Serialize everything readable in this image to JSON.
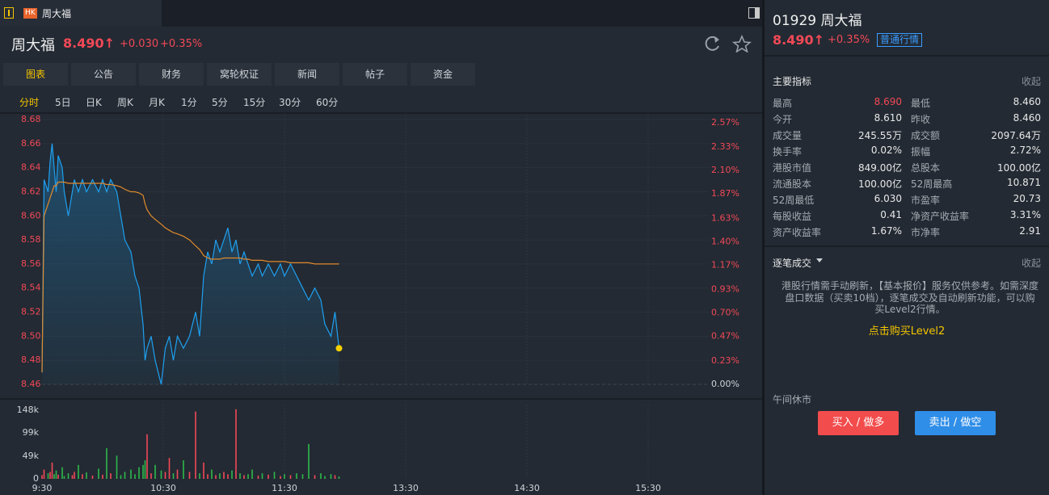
{
  "tab": {
    "badge": "HK",
    "title": "周大福"
  },
  "header": {
    "name": "周大福",
    "price": "8.490↑",
    "change": "+0.030",
    "change_pct": "+0.35%"
  },
  "tabs": [
    "图表",
    "公告",
    "财务",
    "窝轮权证",
    "新闻",
    "帖子",
    "资金"
  ],
  "periods": [
    "分时",
    "5日",
    "日K",
    "周K",
    "月K",
    "1分",
    "5分",
    "15分",
    "30分",
    "60分"
  ],
  "chart_data": [
    {
      "type": "line",
      "x": [
        "9:30",
        "9:31",
        "9:33",
        "9:34",
        "9:35",
        "9:36",
        "9:37",
        "9:38",
        "9:40",
        "9:41",
        "9:43",
        "9:45",
        "9:46",
        "9:48",
        "9:50",
        "9:52",
        "9:55",
        "9:58",
        "10:00",
        "10:02",
        "10:04",
        "10:07",
        "10:09",
        "10:11",
        "10:14",
        "10:16",
        "10:18",
        "10:20",
        "10:21",
        "10:22",
        "10:24",
        "10:26",
        "10:29",
        "10:31",
        "10:33",
        "10:35",
        "10:37",
        "10:40",
        "10:43",
        "10:46",
        "10:48",
        "10:50",
        "10:52",
        "10:54",
        "10:56",
        "10:58",
        "11:00",
        "11:02",
        "11:04",
        "11:06",
        "11:08",
        "11:10",
        "11:12",
        "11:14",
        "11:17",
        "11:19",
        "11:22",
        "11:25",
        "11:28",
        "11:30",
        "11:33",
        "11:36",
        "11:39",
        "11:42",
        "11:45",
        "11:48",
        "11:50",
        "11:53",
        "11:55",
        "11:57"
      ],
      "series": [
        {
          "color": "#1ea0f0",
          "values": [
            8.47,
            8.63,
            8.62,
            8.645,
            8.66,
            8.64,
            8.62,
            8.65,
            8.64,
            8.62,
            8.6,
            8.62,
            8.63,
            8.62,
            8.63,
            8.62,
            8.63,
            8.62,
            8.63,
            8.62,
            8.63,
            8.62,
            8.6,
            8.58,
            8.57,
            8.55,
            8.54,
            8.51,
            8.48,
            8.49,
            8.5,
            8.48,
            8.46,
            8.49,
            8.5,
            8.48,
            8.5,
            8.49,
            8.5,
            8.52,
            8.5,
            8.55,
            8.57,
            8.56,
            8.58,
            8.57,
            8.58,
            8.59,
            8.57,
            8.58,
            8.56,
            8.57,
            8.56,
            8.55,
            8.56,
            8.55,
            8.56,
            8.55,
            8.56,
            8.55,
            8.56,
            8.55,
            8.54,
            8.53,
            8.54,
            8.53,
            8.51,
            8.5,
            8.52,
            8.49
          ]
        },
        {
          "color": "#e08a2c",
          "values": [
            8.47,
            8.6,
            8.61,
            8.615,
            8.62,
            8.625,
            8.625,
            8.628,
            8.628,
            8.628,
            8.627,
            8.627,
            8.627,
            8.627,
            8.627,
            8.627,
            8.627,
            8.627,
            8.627,
            8.626,
            8.626,
            8.625,
            8.624,
            8.622,
            8.62,
            8.62,
            8.619,
            8.617,
            8.61,
            8.605,
            8.6,
            8.597,
            8.593,
            8.59,
            8.588,
            8.586,
            8.585,
            8.583,
            8.58,
            8.575,
            8.572,
            8.567,
            8.565,
            8.564,
            8.564,
            8.564,
            8.565,
            8.565,
            8.565,
            8.565,
            8.565,
            8.564,
            8.564,
            8.563,
            8.563,
            8.563,
            8.562,
            8.562,
            8.562,
            8.562,
            8.561,
            8.561,
            8.561,
            8.561,
            8.56,
            8.56,
            8.56,
            8.56,
            8.56,
            8.56
          ]
        }
      ],
      "area": true,
      "end_marker_color": "#f5d000",
      "xlim": [
        "9:30",
        "16:00"
      ],
      "ylim": [
        8.46,
        8.68
      ],
      "yticks": [
        8.46,
        8.48,
        {
          "value": 8.5,
          "label": "8.50"
        },
        8.52,
        8.54,
        8.56,
        8.58,
        {
          "value": 8.6,
          "label": "8.60"
        },
        8.62,
        8.64,
        8.66,
        8.68
      ],
      "y2lim": [
        0,
        2.6
      ],
      "y2ticks": [
        {
          "value": 0,
          "label": "0.00%"
        },
        {
          "value": 0.23,
          "label": "0.23%"
        },
        {
          "value": 0.47,
          "label": "0.47%"
        },
        {
          "value": 0.7,
          "label": "0.70%"
        },
        {
          "value": 0.93,
          "label": "0.93%"
        },
        {
          "value": 1.17,
          "label": "1.17%"
        },
        {
          "value": 1.4,
          "label": "1.40%"
        },
        {
          "value": 1.63,
          "label": "1.63%"
        },
        {
          "value": 1.87,
          "label": "1.87%"
        },
        {
          "value": 2.1,
          "label": "2.10%"
        },
        {
          "value": 2.33,
          "label": "2.33%"
        },
        {
          "value": 2.57,
          "label": "2.57%"
        }
      ],
      "grid": true
    },
    {
      "type": "bar",
      "x": [
        "9:30",
        "9:31",
        "9:33",
        "9:34",
        "9:35",
        "9:36",
        "9:37",
        "9:38",
        "9:40",
        "9:41",
        "9:43",
        "9:45",
        "9:46",
        "9:48",
        "9:50",
        "9:52",
        "9:55",
        "9:58",
        "10:00",
        "10:02",
        "10:04",
        "10:07",
        "10:09",
        "10:11",
        "10:14",
        "10:16",
        "10:18",
        "10:20",
        "10:21",
        "10:22",
        "10:24",
        "10:26",
        "10:29",
        "10:31",
        "10:33",
        "10:35",
        "10:37",
        "10:40",
        "10:43",
        "10:46",
        "10:48",
        "10:50",
        "10:52",
        "10:54",
        "10:56",
        "10:58",
        "11:00",
        "11:02",
        "11:04",
        "11:06",
        "11:08",
        "11:10",
        "11:12",
        "11:14",
        "11:17",
        "11:19",
        "11:22",
        "11:25",
        "11:28",
        "11:30",
        "11:33",
        "11:36",
        "11:39",
        "11:42",
        "11:45",
        "11:48",
        "11:50",
        "11:53",
        "11:55",
        "11:57"
      ],
      "values": [
        8000,
        20000,
        12000,
        15000,
        35000,
        10000,
        18000,
        9000,
        25000,
        6000,
        12000,
        8000,
        15000,
        30000,
        10000,
        14000,
        7000,
        22000,
        9000,
        66000,
        12000,
        50000,
        8000,
        15000,
        20000,
        10000,
        25000,
        30000,
        40000,
        96000,
        12000,
        30000,
        18000,
        15000,
        45000,
        12000,
        20000,
        40000,
        15000,
        145000,
        12000,
        35000,
        10000,
        20000,
        8000,
        12000,
        15000,
        10000,
        18000,
        150000,
        12000,
        8000,
        10000,
        20000,
        7000,
        12000,
        9000,
        15000,
        6000,
        10000,
        8000,
        12000,
        10000,
        75000,
        8000,
        12000,
        6000,
        10000,
        8000,
        5000
      ],
      "up_color": "#f24957",
      "down_color": "#2fb84a",
      "xlim": [
        "9:30",
        "16:00"
      ],
      "xticks": [
        "9:30",
        "10:30",
        "11:30",
        "13:30",
        "14:30",
        "15:30"
      ],
      "ylim": [
        0,
        160000
      ],
      "yticks": [
        0,
        {
          "value": 49000,
          "label": "49k"
        },
        {
          "value": 99000,
          "label": "99k"
        },
        {
          "value": 148000,
          "label": "148k"
        }
      ]
    }
  ],
  "side": {
    "code_name": "01929 周大福",
    "price": "8.490↑",
    "change_pct": "+0.35%",
    "badge": "普通行情",
    "indicators_title": "主要指标",
    "indicators_collapse": "收起",
    "indicators": [
      [
        "最高",
        "8.690",
        "最低",
        "8.460"
      ],
      [
        "今开",
        "8.610",
        "昨收",
        "8.460"
      ],
      [
        "成交量",
        "245.55万",
        "成交额",
        "2097.64万"
      ],
      [
        "换手率",
        "0.02%",
        "振幅",
        "2.72%"
      ],
      [
        "港股市值",
        "849.00亿",
        "总股本",
        "100.00亿"
      ],
      [
        "流通股本",
        "100.00亿",
        "52周最高",
        "10.871"
      ],
      [
        "52周最低",
        "6.030",
        "市盈率",
        "20.73"
      ],
      [
        "每股收益",
        "0.41",
        "净资产收益率",
        "3.31%"
      ],
      [
        "资产收益率",
        "1.67%",
        "市净率",
        "2.91"
      ]
    ],
    "trades_title": "逐笔成交",
    "trades_collapse": "收起",
    "notice": "港股行情需手动刷新，【基本报价】服务仅供参考。如需深度盘口数据（买卖10档），逐笔成交及自动刷新功能，可以购买Level2行情。",
    "level2": "点击购买Level2",
    "status": "午间休市",
    "buy": "买入 / 做多",
    "sell": "卖出 / 做空"
  }
}
